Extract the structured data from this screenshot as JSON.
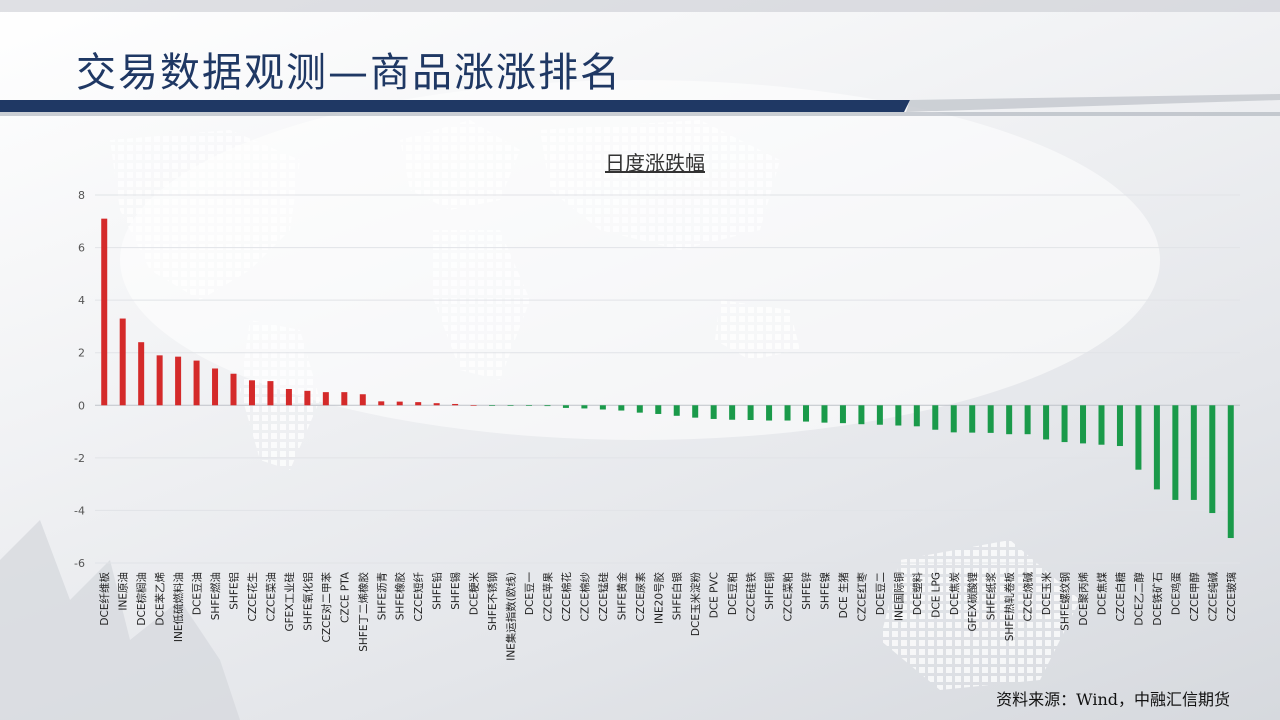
{
  "header": {
    "title": "交易数据观测—商品涨涨排名",
    "accent_color": "#1f3864"
  },
  "footer": {
    "source": "资料来源：Wind，中融汇信期货"
  },
  "chart_data": {
    "type": "bar",
    "title": "日度涨跌幅",
    "xlabel": "",
    "ylabel": "",
    "ylim": [
      -6,
      8
    ],
    "yticks": [
      -6,
      -4,
      -2,
      0,
      2,
      4,
      6,
      8
    ],
    "grid": true,
    "legend": "none",
    "positive_color": "#d42a2a",
    "negative_color": "#1a9a4a",
    "categories": [
      "DCE纤维板",
      "INE原油",
      "DCE棕榈油",
      "DCE苯乙烯",
      "INE低硫燃料油",
      "DCE豆油",
      "SHFE燃油",
      "SHFE铝",
      "CZCE花生",
      "CZCE菜油",
      "GFEX工业硅",
      "SHFE氧化铝",
      "CZCE对二甲苯",
      "CZCE PTA",
      "SHFE丁二烯橡胶",
      "SHFE沥青",
      "SHFE橡胶",
      "CZCE短纤",
      "SHFE铅",
      "SHFE锡",
      "DCE粳米",
      "SHFE不锈钢",
      "INE集运指数(欧线)",
      "DCE豆一",
      "CZCE苹果",
      "CZCE棉花",
      "CZCE棉纱",
      "CZCE锰硅",
      "SHFE黄金",
      "CZCE尿素",
      "INE20号胶",
      "SHFE白银",
      "DCE玉米淀粉",
      "DCE PVC",
      "DCE豆粕",
      "CZCE硅铁",
      "SHFE铜",
      "CZCE菜粕",
      "SHFE锌",
      "SHFE镍",
      "DCE 生猪",
      "CZCE红枣",
      "DCE豆二",
      "INE国际铜",
      "DCE塑料",
      "DCE LPG",
      "DCE焦炭",
      "GFEX碳酸锂",
      "SHFE纸浆",
      "SHFE热轧卷板",
      "CZCE烧碱",
      "DCE玉米",
      "SHFE螺纹钢",
      "DCE聚丙烯",
      "DCE焦煤",
      "CZCE白糖",
      "DCE乙二醇",
      "DCE铁矿石",
      "DCE鸡蛋",
      "CZCE甲醇",
      "CZCE纯碱",
      "CZCE玻璃"
    ],
    "values": [
      7.1,
      3.3,
      2.4,
      1.9,
      1.85,
      1.7,
      1.4,
      1.2,
      0.95,
      0.92,
      0.62,
      0.55,
      0.5,
      0.5,
      0.42,
      0.15,
      0.14,
      0.12,
      0.08,
      0.05,
      0.01,
      -0.01,
      -0.01,
      -0.02,
      -0.03,
      -0.1,
      -0.12,
      -0.16,
      -0.2,
      -0.28,
      -0.33,
      -0.4,
      -0.47,
      -0.52,
      -0.55,
      -0.56,
      -0.58,
      -0.58,
      -0.62,
      -0.66,
      -0.68,
      -0.72,
      -0.74,
      -0.77,
      -0.8,
      -0.93,
      -1.03,
      -1.04,
      -1.05,
      -1.1,
      -1.1,
      -1.3,
      -1.4,
      -1.45,
      -1.5,
      -1.55,
      -2.45,
      -3.2,
      -3.6,
      -3.6,
      -4.1,
      -5.05
    ]
  }
}
